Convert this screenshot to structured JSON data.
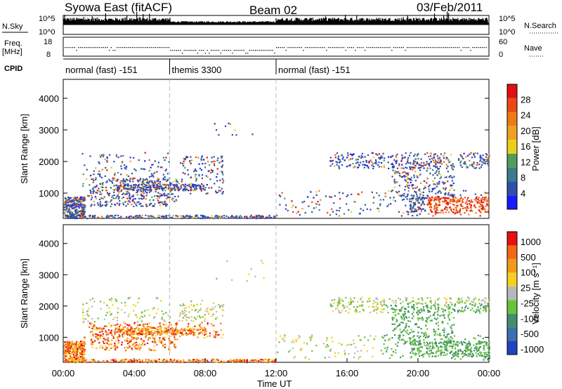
{
  "header": {
    "station": "Syowa East (fitACF)",
    "beam": "Beam 02",
    "date": "03/Feb/2011"
  },
  "strips": {
    "nsky_label": "N.Sky",
    "nsky_ticks": [
      "10^5",
      "10^0"
    ],
    "nsearch_label": "N.Search",
    "nsearch_ticks": [
      "10^5",
      "10^0"
    ],
    "freq_label": "Freq.",
    "freq_unit": "[MHz]",
    "freq_ticks": [
      "18",
      "8"
    ],
    "nave_label": "Nave",
    "nave_ticks": [
      "60",
      "0"
    ],
    "cpid_label": "CPID",
    "cpid_segments": [
      {
        "label": "normal (fast) -151",
        "start": 0,
        "end": 6
      },
      {
        "label": "themis 3300",
        "start": 6,
        "end": 12
      },
      {
        "label": "normal (fast) -151",
        "start": 12,
        "end": 24
      }
    ]
  },
  "x_axis": {
    "title": "Time UT",
    "ticks": [
      "00:00",
      "04:00",
      "08:00",
      "12:00",
      "16:00",
      "20:00",
      "00:00"
    ]
  },
  "chart_data": [
    {
      "type": "heatmap",
      "panel": "power",
      "ylabel": "Slant Range [km]",
      "yticks": [
        "1000",
        "2000",
        "3000",
        "4000"
      ],
      "ylim": [
        200,
        4600
      ],
      "xlim_hours": [
        0,
        24
      ],
      "colorbar_label": "Power [dB]",
      "colorbar_ticks": [
        "4",
        "8",
        "12",
        "16",
        "20",
        "24",
        "28"
      ],
      "colors": [
        "#1a1aff",
        "#2f4fa8",
        "#3d7a8c",
        "#4f9c5c",
        "#e8d01c",
        "#f0a020",
        "#ef7a18",
        "#e84a14",
        "#e01010"
      ]
    },
    {
      "type": "heatmap",
      "panel": "velocity",
      "ylabel": "Slant Range [km]",
      "yticks": [
        "1000",
        "2000",
        "3000",
        "4000"
      ],
      "ylim": [
        200,
        4600
      ],
      "xlim_hours": [
        0,
        24
      ],
      "colorbar_label": "Velocity  [m s⁻¹]",
      "colorbar_ticks": [
        "1000",
        "500",
        "100",
        "25",
        "-25",
        "-100",
        "-500",
        "-1000"
      ],
      "colors": [
        "#2244bb",
        "#3a6fb0",
        "#3f8f6a",
        "#6ac23a",
        "#b8b8b8",
        "#f5d020",
        "#f29a1a",
        "#ef6a14",
        "#e81010"
      ]
    }
  ]
}
